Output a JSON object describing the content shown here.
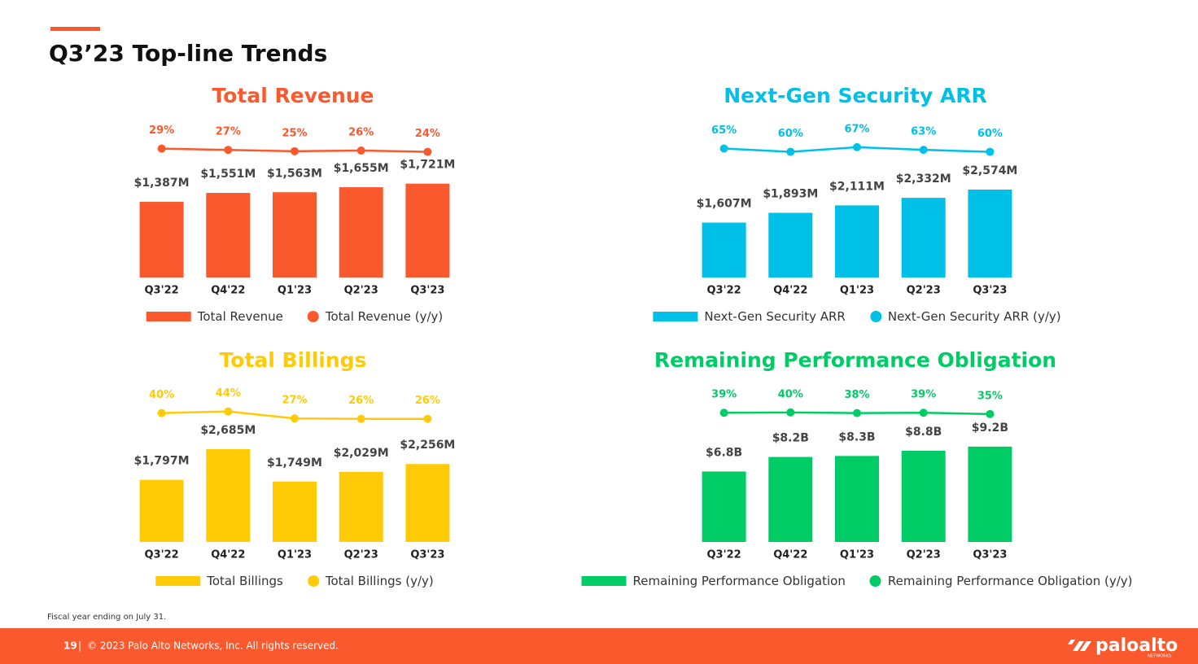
{
  "title": "Q3’23 Top-line Trends",
  "chart_data": [
    {
      "type": "bar",
      "title": "Total Revenue",
      "categories": [
        "Q3'22",
        "Q4'22",
        "Q1'23",
        "Q2'23",
        "Q3'23"
      ],
      "series": [
        {
          "name": "Total Revenue",
          "color": "#fa582d",
          "values": [
            1387,
            1551,
            1563,
            1655,
            1721
          ],
          "value_labels": [
            "$1,387M",
            "$1,551M",
            "$1,563M",
            "$1,655M",
            "$1,721M"
          ]
        },
        {
          "name": "Total Revenue (y/y)",
          "color": "#fa582d",
          "type": "line",
          "axis": "y2",
          "values": [
            29,
            27,
            25,
            26,
            24
          ],
          "value_labels": [
            "29%",
            "27%",
            "25%",
            "26%",
            "24%"
          ]
        }
      ],
      "ylim": [
        0,
        2850
      ],
      "y2lim": [
        -170,
        70
      ],
      "legend": "bottom"
    },
    {
      "type": "bar",
      "title": "Next-Gen Security ARR",
      "categories": [
        "Q3'22",
        "Q4'22",
        "Q1'23",
        "Q2'23",
        "Q3'23"
      ],
      "series": [
        {
          "name": "Next-Gen Security ARR",
          "color": "#00c0e8",
          "values": [
            1607,
            1893,
            2111,
            2332,
            2574
          ],
          "value_labels": [
            "$1,607M",
            "$1,893M",
            "$2,111M",
            "$2,332M",
            "$2,574M"
          ]
        },
        {
          "name": "Next-Gen Security ARR (y/y)",
          "color": "#00c0e8",
          "type": "line",
          "axis": "y2",
          "values": [
            65,
            60,
            67,
            63,
            60
          ],
          "value_labels": [
            "65%",
            "60%",
            "67%",
            "63%",
            "60%"
          ]
        }
      ],
      "ylim": [
        0,
        4550
      ],
      "y2lim": [
        -130,
        105
      ],
      "legend": "bottom"
    },
    {
      "type": "bar",
      "title": "Total Billings",
      "categories": [
        "Q3'22",
        "Q4'22",
        "Q1'23",
        "Q2'23",
        "Q3'23"
      ],
      "series": [
        {
          "name": "Total Billings",
          "color": "#ffcb06",
          "values": [
            1797,
            2685,
            1749,
            2029,
            2256
          ],
          "value_labels": [
            "$1,797M",
            "$2,685M",
            "$1,749M",
            "$2,029M",
            "$2,256M"
          ]
        },
        {
          "name": "Total Billings (y/y)",
          "color": "#ffcb06",
          "type": "line",
          "axis": "y2",
          "values": [
            40,
            44,
            27,
            26,
            26
          ],
          "value_labels": [
            "40%",
            "44%",
            "27%",
            "26%",
            "26%"
          ]
        }
      ],
      "ylim": [
        0,
        4500
      ],
      "y2lim": [
        -275,
        105
      ],
      "legend": "bottom"
    },
    {
      "type": "bar",
      "title": "Remaining Performance Obligation",
      "categories": [
        "Q3'22",
        "Q4'22",
        "Q1'23",
        "Q2'23",
        "Q3'23"
      ],
      "series": [
        {
          "name": "Remaining Performance Obligation",
          "color": "#00cc66",
          "values": [
            6.8,
            8.2,
            8.3,
            8.8,
            9.2
          ],
          "value_labels": [
            "$6.8B",
            "$8.2B",
            "$8.3B",
            "$8.8B",
            "$9.2B"
          ]
        },
        {
          "name": "Remaining Performance Obligation (y/y)",
          "color": "#00cc66",
          "type": "line",
          "axis": "y2",
          "values": [
            39,
            40,
            38,
            39,
            35
          ],
          "value_labels": [
            "39%",
            "40%",
            "38%",
            "39%",
            "35%"
          ]
        }
      ],
      "ylim": [
        0,
        15
      ],
      "y2lim": [
        -360,
        120
      ],
      "legend": "bottom"
    }
  ],
  "footnote": "Fiscal year ending on July 31.",
  "footer": {
    "page": "19",
    "separator": "|",
    "copyright": "© 2023 Palo Alto Networks, Inc. All rights reserved.",
    "logo": "paloalto",
    "logo_sub": "NETWORKS"
  }
}
